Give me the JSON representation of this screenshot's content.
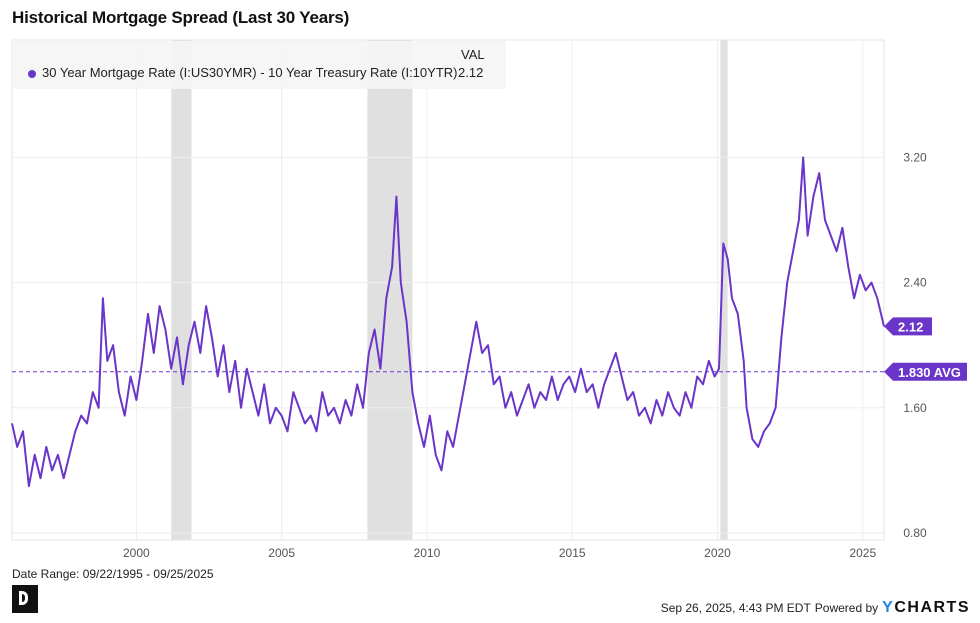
{
  "title": "Historical Mortgage Spread (Last 30 Years)",
  "legend": {
    "header": "VAL",
    "series_name": "30 Year Mortgage Rate (I:US30YMR) - 10 Year Treasury Rate (I:10YTR)",
    "value": "2.12"
  },
  "date_range": "Date Range: 09/22/1995 - 09/25/2025",
  "footer": {
    "timestamp": "Sep 26, 2025, 4:43 PM EDT",
    "powered_by": "Powered by",
    "brand_y": "Y",
    "brand_rest": "CHARTS"
  },
  "chart_data": {
    "type": "line",
    "title": "Historical Mortgage Spread (Last 30 Years)",
    "xlim": [
      1995.72,
      2025.73
    ],
    "ylim": [
      0.6,
      3.8
    ],
    "x_ticks": [
      {
        "value": 2000,
        "label": "2000"
      },
      {
        "value": 2005,
        "label": "2005"
      },
      {
        "value": 2010,
        "label": "2010"
      },
      {
        "value": 2015,
        "label": "2015"
      },
      {
        "value": 2020,
        "label": "2020"
      },
      {
        "value": 2025,
        "label": "2025"
      }
    ],
    "y_ticks": [
      {
        "value": 0.8,
        "label": "0.80"
      },
      {
        "value": 1.6,
        "label": "1.60"
      },
      {
        "value": 2.4,
        "label": "2.40"
      },
      {
        "value": 3.2,
        "label": "3.20"
      }
    ],
    "grid": true,
    "legend_position": "top-left",
    "color": "#6a35c9",
    "average": {
      "value": 1.83,
      "label": "1.830 AVG"
    },
    "last_value": {
      "value": 2.12,
      "label": "2.12"
    },
    "recession_shading": [
      [
        2001.2,
        2001.9
      ],
      [
        2007.95,
        2009.5
      ],
      [
        2020.1,
        2020.35
      ]
    ],
    "series": [
      {
        "name": "30 Year Mortgage Rate (I:US30YMR) - 10 Year Treasury Rate (I:10YTR)",
        "points": [
          [
            1995.72,
            1.5
          ],
          [
            1995.9,
            1.35
          ],
          [
            1996.1,
            1.45
          ],
          [
            1996.3,
            1.1
          ],
          [
            1996.5,
            1.3
          ],
          [
            1996.7,
            1.15
          ],
          [
            1996.9,
            1.35
          ],
          [
            1997.1,
            1.2
          ],
          [
            1997.3,
            1.3
          ],
          [
            1997.5,
            1.15
          ],
          [
            1997.7,
            1.3
          ],
          [
            1997.9,
            1.45
          ],
          [
            1998.1,
            1.55
          ],
          [
            1998.3,
            1.5
          ],
          [
            1998.5,
            1.7
          ],
          [
            1998.7,
            1.6
          ],
          [
            1998.85,
            2.3
          ],
          [
            1999.0,
            1.9
          ],
          [
            1999.2,
            2.0
          ],
          [
            1999.4,
            1.7
          ],
          [
            1999.6,
            1.55
          ],
          [
            1999.8,
            1.8
          ],
          [
            2000.0,
            1.65
          ],
          [
            2000.2,
            1.9
          ],
          [
            2000.4,
            2.2
          ],
          [
            2000.6,
            1.95
          ],
          [
            2000.8,
            2.25
          ],
          [
            2001.0,
            2.1
          ],
          [
            2001.2,
            1.85
          ],
          [
            2001.4,
            2.05
          ],
          [
            2001.6,
            1.75
          ],
          [
            2001.8,
            2.0
          ],
          [
            2002.0,
            2.15
          ],
          [
            2002.2,
            1.95
          ],
          [
            2002.4,
            2.25
          ],
          [
            2002.6,
            2.05
          ],
          [
            2002.8,
            1.8
          ],
          [
            2003.0,
            2.0
          ],
          [
            2003.2,
            1.7
          ],
          [
            2003.4,
            1.9
          ],
          [
            2003.6,
            1.6
          ],
          [
            2003.8,
            1.85
          ],
          [
            2004.0,
            1.7
          ],
          [
            2004.2,
            1.55
          ],
          [
            2004.4,
            1.75
          ],
          [
            2004.6,
            1.5
          ],
          [
            2004.8,
            1.6
          ],
          [
            2005.0,
            1.55
          ],
          [
            2005.2,
            1.45
          ],
          [
            2005.4,
            1.7
          ],
          [
            2005.6,
            1.6
          ],
          [
            2005.8,
            1.5
          ],
          [
            2006.0,
            1.55
          ],
          [
            2006.2,
            1.45
          ],
          [
            2006.4,
            1.7
          ],
          [
            2006.6,
            1.55
          ],
          [
            2006.8,
            1.6
          ],
          [
            2007.0,
            1.5
          ],
          [
            2007.2,
            1.65
          ],
          [
            2007.4,
            1.55
          ],
          [
            2007.6,
            1.75
          ],
          [
            2007.8,
            1.6
          ],
          [
            2008.0,
            1.95
          ],
          [
            2008.2,
            2.1
          ],
          [
            2008.4,
            1.85
          ],
          [
            2008.6,
            2.3
          ],
          [
            2008.8,
            2.5
          ],
          [
            2008.95,
            2.95
          ],
          [
            2009.1,
            2.4
          ],
          [
            2009.3,
            2.15
          ],
          [
            2009.5,
            1.7
          ],
          [
            2009.7,
            1.5
          ],
          [
            2009.9,
            1.35
          ],
          [
            2010.1,
            1.55
          ],
          [
            2010.3,
            1.3
          ],
          [
            2010.5,
            1.2
          ],
          [
            2010.7,
            1.45
          ],
          [
            2010.9,
            1.35
          ],
          [
            2011.1,
            1.55
          ],
          [
            2011.3,
            1.75
          ],
          [
            2011.5,
            1.95
          ],
          [
            2011.7,
            2.15
          ],
          [
            2011.9,
            1.95
          ],
          [
            2012.1,
            2.0
          ],
          [
            2012.3,
            1.75
          ],
          [
            2012.5,
            1.8
          ],
          [
            2012.7,
            1.6
          ],
          [
            2012.9,
            1.7
          ],
          [
            2013.1,
            1.55
          ],
          [
            2013.3,
            1.65
          ],
          [
            2013.5,
            1.75
          ],
          [
            2013.7,
            1.6
          ],
          [
            2013.9,
            1.7
          ],
          [
            2014.1,
            1.65
          ],
          [
            2014.3,
            1.8
          ],
          [
            2014.5,
            1.65
          ],
          [
            2014.7,
            1.75
          ],
          [
            2014.9,
            1.8
          ],
          [
            2015.1,
            1.7
          ],
          [
            2015.3,
            1.85
          ],
          [
            2015.5,
            1.7
          ],
          [
            2015.7,
            1.75
          ],
          [
            2015.9,
            1.6
          ],
          [
            2016.1,
            1.75
          ],
          [
            2016.3,
            1.85
          ],
          [
            2016.5,
            1.95
          ],
          [
            2016.7,
            1.8
          ],
          [
            2016.9,
            1.65
          ],
          [
            2017.1,
            1.7
          ],
          [
            2017.3,
            1.55
          ],
          [
            2017.5,
            1.6
          ],
          [
            2017.7,
            1.5
          ],
          [
            2017.9,
            1.65
          ],
          [
            2018.1,
            1.55
          ],
          [
            2018.3,
            1.7
          ],
          [
            2018.5,
            1.6
          ],
          [
            2018.7,
            1.55
          ],
          [
            2018.9,
            1.7
          ],
          [
            2019.1,
            1.6
          ],
          [
            2019.3,
            1.8
          ],
          [
            2019.5,
            1.75
          ],
          [
            2019.7,
            1.9
          ],
          [
            2019.9,
            1.8
          ],
          [
            2020.05,
            1.85
          ],
          [
            2020.2,
            2.65
          ],
          [
            2020.35,
            2.55
          ],
          [
            2020.5,
            2.3
          ],
          [
            2020.7,
            2.2
          ],
          [
            2020.9,
            1.9
          ],
          [
            2021.0,
            1.6
          ],
          [
            2021.2,
            1.4
          ],
          [
            2021.4,
            1.35
          ],
          [
            2021.6,
            1.45
          ],
          [
            2021.8,
            1.5
          ],
          [
            2022.0,
            1.6
          ],
          [
            2022.2,
            2.05
          ],
          [
            2022.4,
            2.4
          ],
          [
            2022.6,
            2.6
          ],
          [
            2022.8,
            2.8
          ],
          [
            2022.95,
            3.2
          ],
          [
            2023.1,
            2.7
          ],
          [
            2023.3,
            2.95
          ],
          [
            2023.5,
            3.1
          ],
          [
            2023.7,
            2.8
          ],
          [
            2023.9,
            2.7
          ],
          [
            2024.1,
            2.6
          ],
          [
            2024.3,
            2.75
          ],
          [
            2024.5,
            2.5
          ],
          [
            2024.7,
            2.3
          ],
          [
            2024.9,
            2.45
          ],
          [
            2025.1,
            2.35
          ],
          [
            2025.3,
            2.4
          ],
          [
            2025.5,
            2.3
          ],
          [
            2025.73,
            2.12
          ]
        ]
      }
    ]
  }
}
